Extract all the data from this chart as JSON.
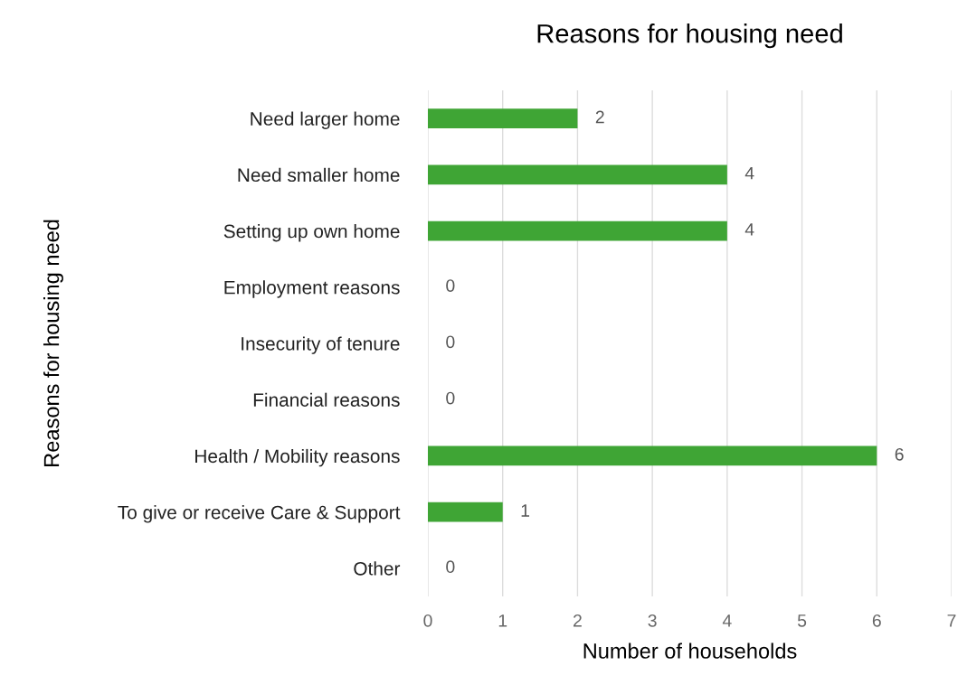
{
  "chart_data": {
    "type": "bar",
    "orientation": "horizontal",
    "title": "Reasons for housing need",
    "xlabel": "Number of households",
    "ylabel": "Reasons for housing need",
    "categories": [
      "Need larger home",
      "Need smaller home",
      "Setting up own home",
      "Employment reasons",
      "Insecurity of tenure",
      "Financial reasons",
      "Health / Mobility reasons",
      "To give or receive Care & Support",
      "Other"
    ],
    "values": [
      2,
      4,
      4,
      0,
      0,
      0,
      6,
      1,
      0
    ],
    "color": "#3fa535",
    "xlim": [
      0,
      7
    ],
    "xticks": [
      0,
      1,
      2,
      3,
      4,
      5,
      6,
      7
    ],
    "grid": "x",
    "data_labels": true
  }
}
